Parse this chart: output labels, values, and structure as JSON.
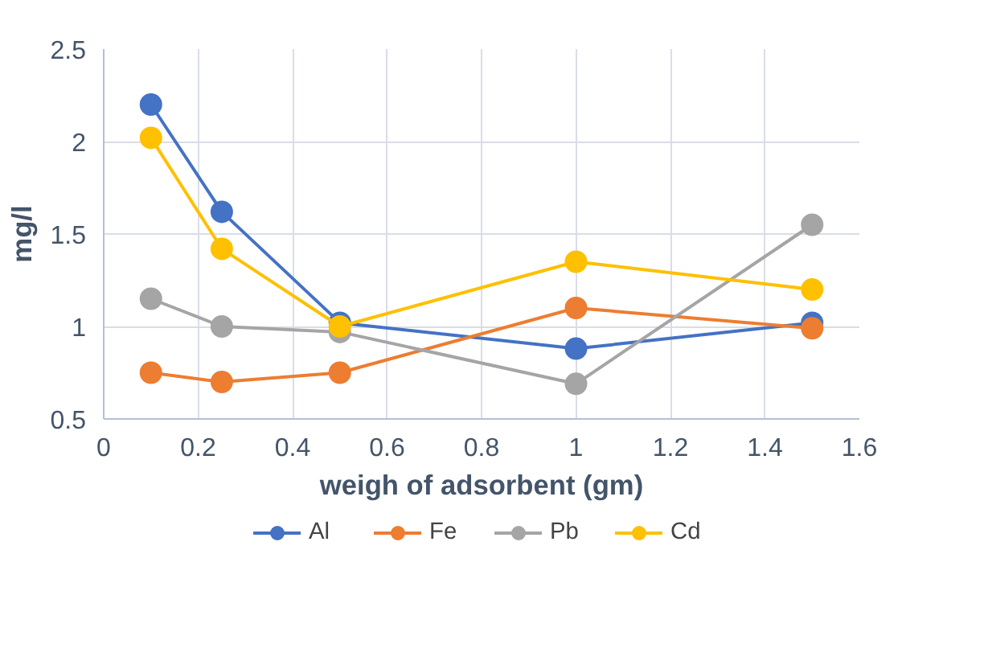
{
  "chart_data": {
    "type": "line",
    "xlabel": "weigh of adsorbent (gm)",
    "ylabel": "mg/l",
    "x": [
      0.1,
      0.25,
      0.5,
      1,
      1.5
    ],
    "series": [
      {
        "name": "Al",
        "color": "#4472c4",
        "values": [
          2.2,
          1.62,
          1.02,
          0.88,
          1.02
        ]
      },
      {
        "name": "Fe",
        "color": "#ed7d31",
        "values": [
          0.75,
          0.7,
          0.75,
          1.1,
          0.99
        ]
      },
      {
        "name": "Pb",
        "color": "#a5a5a5",
        "values": [
          1.15,
          1.0,
          0.97,
          0.69,
          1.55
        ]
      },
      {
        "name": "Cd",
        "color": "#ffc000",
        "values": [
          2.02,
          1.42,
          1.0,
          1.35,
          1.2
        ]
      }
    ],
    "xlim": [
      0,
      1.6
    ],
    "xticks": [
      0,
      0.2,
      0.4,
      0.6,
      0.8,
      1,
      1.2,
      1.4,
      1.6
    ],
    "ylim": [
      0.5,
      2.5
    ],
    "yticks": [
      0.5,
      1,
      1.5,
      2,
      2.5
    ],
    "grid": true,
    "legend": "bottom",
    "marker": "circle",
    "line_style": "solid"
  }
}
